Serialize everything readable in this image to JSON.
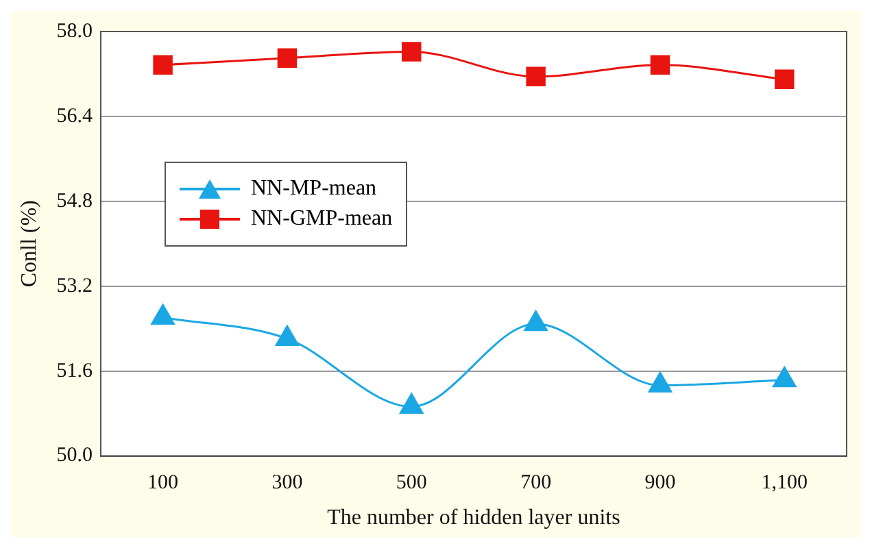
{
  "chart_data": {
    "type": "line",
    "xlabel": "The number of hidden layer units",
    "ylabel": "Conll (%)",
    "categories": [
      "100",
      "300",
      "500",
      "700",
      "900",
      "1,100"
    ],
    "series": [
      {
        "name": "NN-MP-mean",
        "color": "#1aa7e4",
        "marker": "triangle",
        "values": [
          52.61,
          52.21,
          50.93,
          52.49,
          51.33,
          51.43
        ]
      },
      {
        "name": "NN-GMP-mean",
        "color": "#e8140f",
        "marker": "square",
        "values": [
          57.37,
          57.5,
          57.62,
          57.15,
          57.37,
          57.1
        ]
      }
    ],
    "ylim": [
      50.0,
      58.0
    ],
    "yticks": [
      {
        "value": 50,
        "label": "50.0"
      },
      {
        "value": 51.6,
        "label": "51.6"
      },
      {
        "value": 53.2,
        "label": "53.2"
      },
      {
        "value": 54.8,
        "label": "54.8"
      },
      {
        "value": 56.4,
        "label": "56.4"
      },
      {
        "value": 58,
        "label": "58.0"
      }
    ],
    "grid": "y",
    "legend": "left",
    "line_style": "solid"
  }
}
